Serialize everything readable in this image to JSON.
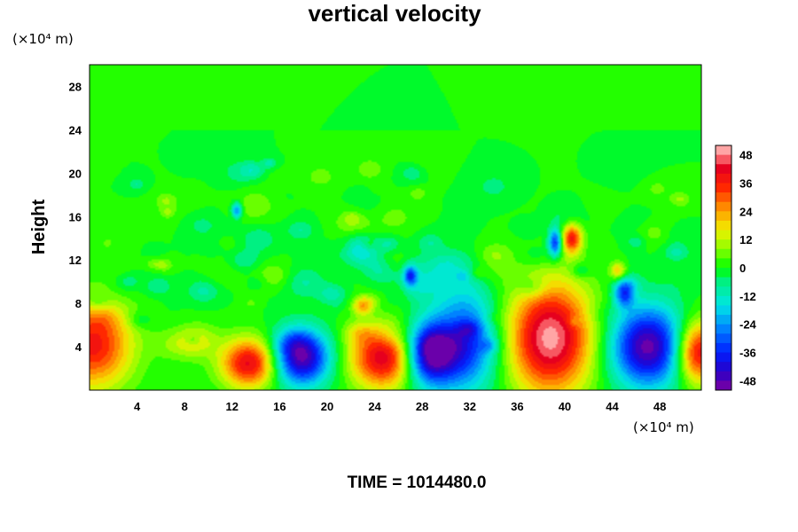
{
  "chart_data": {
    "type": "heatmap",
    "title": "vertical velocity",
    "ylabel": "Height",
    "xlabel": "",
    "x_unit": "(×10⁴ m)",
    "y_unit": "(×10⁴ m)",
    "xlim": [
      0,
      51.5
    ],
    "ylim": [
      0,
      30
    ],
    "x_ticks": [
      "4",
      "8",
      "12",
      "16",
      "20",
      "24",
      "28",
      "32",
      "36",
      "40",
      "44",
      "48"
    ],
    "x_tick_values": [
      4,
      8,
      12,
      16,
      20,
      24,
      28,
      32,
      36,
      40,
      44,
      48
    ],
    "y_ticks": [
      "4",
      "8",
      "12",
      "16",
      "20",
      "24",
      "28"
    ],
    "y_tick_values": [
      4,
      8,
      12,
      16,
      20,
      24,
      28
    ],
    "colorbar": {
      "range": [
        -52,
        52
      ],
      "ticks": [
        "48",
        "36",
        "24",
        "12",
        "0",
        "-12",
        "-24",
        "-36",
        "-48"
      ],
      "tick_values": [
        48,
        36,
        24,
        12,
        0,
        -12,
        -24,
        -36,
        -48
      ]
    },
    "background_value": 0,
    "features": [
      {
        "x": 0.3,
        "y": 4.2,
        "value": 38,
        "sx": 2.3,
        "sy": 2.8
      },
      {
        "x": 13.5,
        "y": 2.5,
        "value": 42,
        "sx": 1.7,
        "sy": 1.6
      },
      {
        "x": 17.8,
        "y": 3.0,
        "value": -50,
        "sx": 1.7,
        "sy": 1.8
      },
      {
        "x": 24.8,
        "y": 3.0,
        "value": 44,
        "sx": 2.0,
        "sy": 2.0
      },
      {
        "x": 28.5,
        "y": 3.3,
        "value": -48,
        "sx": 1.5,
        "sy": 2.0
      },
      {
        "x": 31.5,
        "y": 4.5,
        "value": -38,
        "sx": 2.0,
        "sy": 3.2
      },
      {
        "x": 38.8,
        "y": 4.8,
        "value": 50,
        "sx": 2.5,
        "sy": 3.6
      },
      {
        "x": 47.0,
        "y": 4.0,
        "value": -50,
        "sx": 2.2,
        "sy": 2.6
      },
      {
        "x": 51.2,
        "y": 3.5,
        "value": 44,
        "sx": 1.3,
        "sy": 2.0
      },
      {
        "x": 40.6,
        "y": 14.0,
        "value": 36,
        "sx": 0.6,
        "sy": 1.0
      },
      {
        "x": 39.2,
        "y": 13.6,
        "value": -36,
        "sx": 0.4,
        "sy": 0.9
      },
      {
        "x": 45.0,
        "y": 9.0,
        "value": -32,
        "sx": 0.6,
        "sy": 0.9
      },
      {
        "x": 27.0,
        "y": 10.5,
        "value": -30,
        "sx": 0.4,
        "sy": 0.7
      },
      {
        "x": 12.4,
        "y": 16.6,
        "value": -28,
        "sx": 0.3,
        "sy": 0.5
      },
      {
        "x": 23.0,
        "y": 7.8,
        "value": 22,
        "sx": 0.6,
        "sy": 0.6
      },
      {
        "x": 44.5,
        "y": 11.0,
        "value": 22,
        "sx": 0.5,
        "sy": 0.6
      }
    ],
    "grid": false,
    "legend": "colorbar-right"
  },
  "footer": {
    "time_label": "TIME = 1014480.0"
  }
}
